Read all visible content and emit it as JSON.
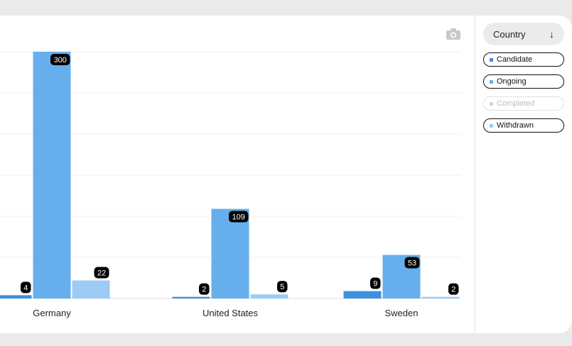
{
  "chart_data": {
    "type": "bar",
    "categories": [
      "Germany",
      "United States",
      "Sweden"
    ],
    "series": [
      {
        "name": "Candidate",
        "values": [
          4,
          2,
          9
        ],
        "color": "#3d8fe0",
        "visible": true
      },
      {
        "name": "Ongoing",
        "values": [
          300,
          109,
          53
        ],
        "color": "#66afec",
        "visible": true
      },
      {
        "name": "Completed",
        "values": [
          0,
          0,
          0
        ],
        "color": "#d6d6d6",
        "visible": false
      },
      {
        "name": "Withdrawn",
        "values": [
          22,
          5,
          2
        ],
        "color": "#9dcbf3",
        "visible": true
      }
    ],
    "ylim": [
      0,
      300
    ],
    "grid": true,
    "legend_placement": "right"
  },
  "sidebar": {
    "sort_label": "Country",
    "sort_icon": "arrow-down-icon"
  },
  "toolbar": {
    "camera_icon": "camera-icon"
  }
}
